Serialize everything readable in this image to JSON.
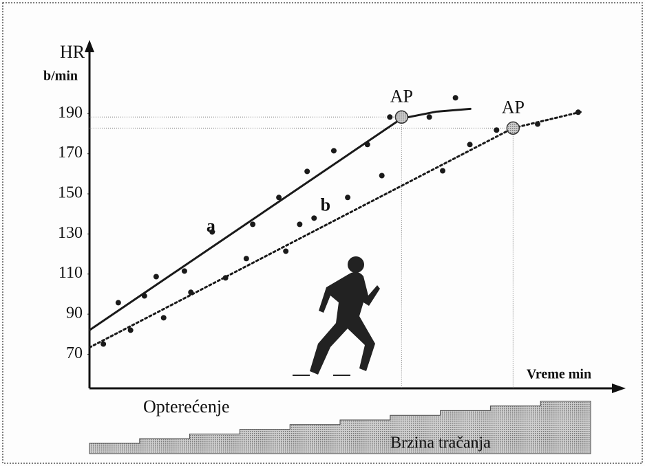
{
  "chart_data": {
    "type": "line",
    "y_label": "HR",
    "y_unit": "b/min",
    "x_label": "Vreme min",
    "load_label": "Opterećenje",
    "speed_label": "Brzina tračanja",
    "xlim": [
      0,
      100
    ],
    "ylim": [
      53,
      222
    ],
    "yticks": [
      70,
      90,
      110,
      130,
      150,
      170,
      190
    ],
    "series": [
      {
        "name": "a",
        "color": "#1a1a1a",
        "style": "solid",
        "x": [
          0,
          58.5,
          65,
          71.4
        ],
        "values": [
          82,
          187.6,
          191,
          192.4
        ]
      },
      {
        "name": "b",
        "color": "#1a1a1a",
        "style": "dotted",
        "x": [
          0,
          79.4,
          92.3
        ],
        "values": [
          73.4,
          182.8,
          191
        ]
      }
    ],
    "points": {
      "color": "#1a1a1a",
      "x": [
        2.6,
        5.4,
        7.7,
        10.3,
        12.5,
        13.9,
        17.8,
        19.0,
        23.0,
        25.5,
        29.4,
        30.6,
        35.5,
        36.8,
        39.4,
        40.8,
        42.1,
        45.8,
        48.4,
        52.1,
        54.8,
        56.3,
        63.7,
        66.2,
        68.6,
        71.3,
        76.3,
        84.0,
        91.6
      ],
      "y": [
        75.1,
        95.7,
        82.0,
        99.1,
        108.7,
        88.2,
        111.5,
        100.9,
        131.0,
        108.1,
        117.7,
        134.8,
        148.2,
        121.4,
        134.8,
        161.2,
        137.9,
        171.5,
        148.2,
        174.6,
        159.1,
        188.3,
        188.3,
        161.5,
        197.9,
        174.6,
        181.8,
        184.8,
        190.7
      ]
    },
    "annotations": [
      {
        "text": "AP",
        "x": 58.5,
        "y": 188.3
      },
      {
        "text": "AP",
        "x": 79.4,
        "y": 182.8
      }
    ]
  }
}
